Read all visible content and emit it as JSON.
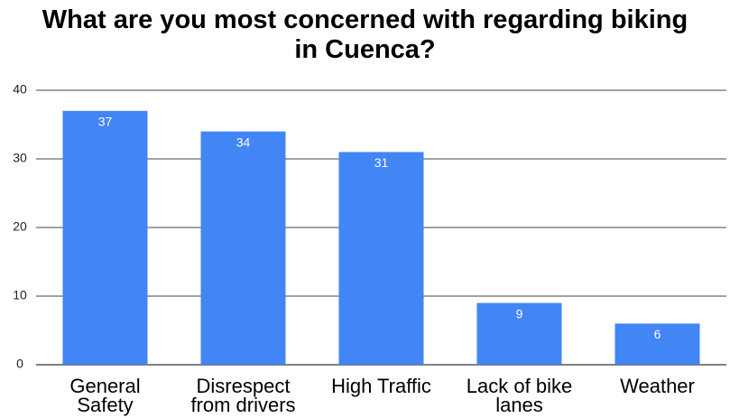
{
  "chart_data": {
    "type": "bar",
    "title": "What are you most concerned with regarding biking in Cuenca?",
    "categories": [
      "General Safety",
      "Disrespect from drivers",
      "High Traffic",
      "Lack of bike lanes",
      "Weather"
    ],
    "values": [
      37,
      34,
      31,
      9,
      6
    ],
    "color": "#4285f4",
    "ylim": [
      0,
      40
    ],
    "yticks": [
      0,
      10,
      20,
      30,
      40
    ],
    "grid": true
  }
}
